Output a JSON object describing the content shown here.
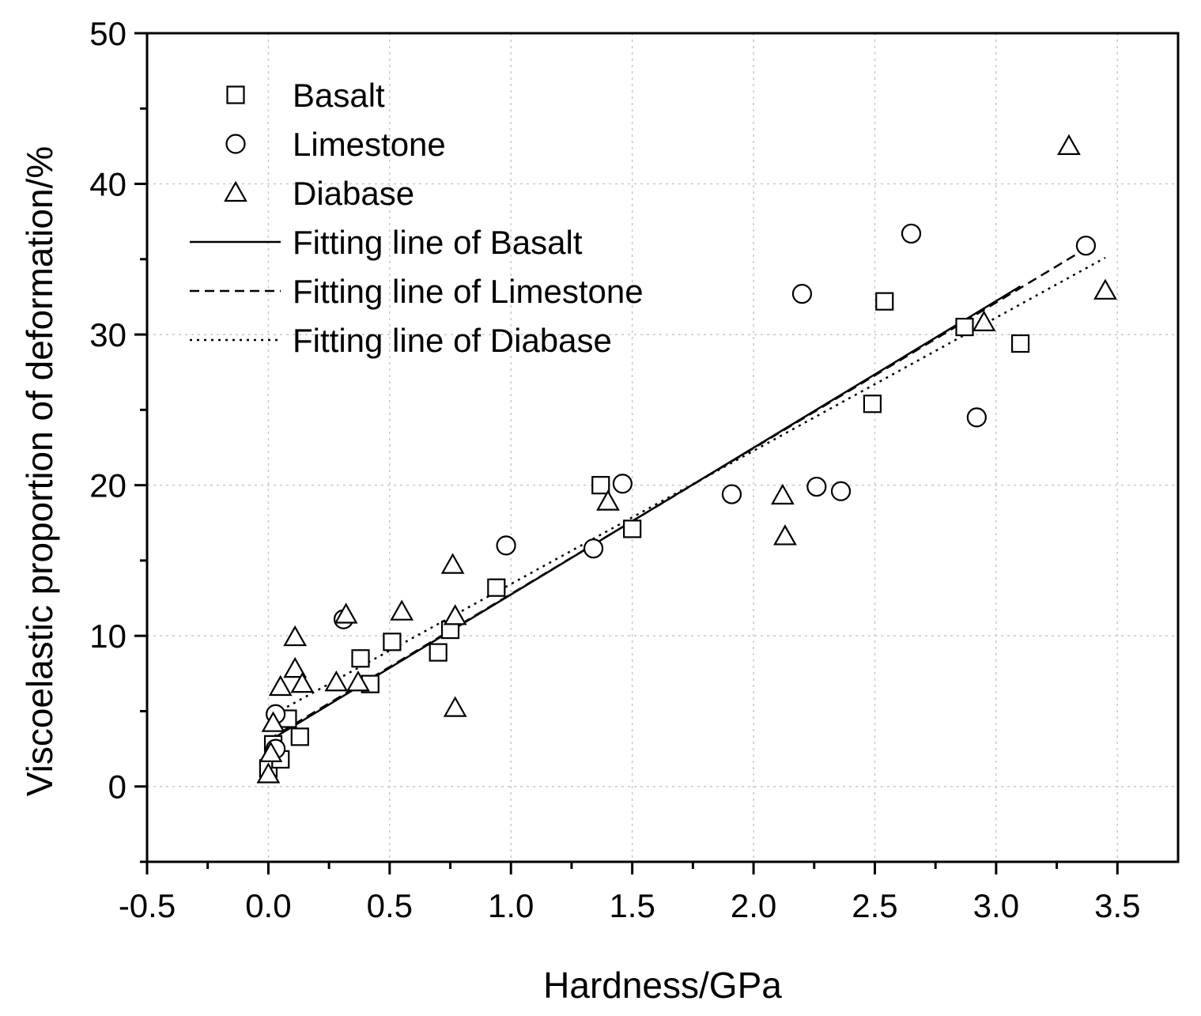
{
  "chart_data": {
    "type": "scatter",
    "xlabel": "Hardness/GPa",
    "ylabel": "Viscoelastic proportion of  deformation/%",
    "xlim": [
      -0.5,
      3.75
    ],
    "ylim": [
      -5,
      50
    ],
    "x_ticks": [
      -0.5,
      0.0,
      0.5,
      1.0,
      1.5,
      2.0,
      2.5,
      3.0,
      3.5
    ],
    "x_tick_labels": [
      "-0.5",
      "0.0",
      "0.5",
      "1.0",
      "1.5",
      "2.0",
      "2.5",
      "3.0",
      "3.5"
    ],
    "y_ticks": [
      0,
      10,
      20,
      30,
      40,
      50
    ],
    "y_tick_labels": [
      "0",
      "10",
      "20",
      "30",
      "40",
      "50"
    ],
    "grid": true,
    "legend_position": "top-left",
    "series": [
      {
        "name": "Basalt",
        "marker": "square",
        "points": [
          [
            0.0,
            1.2
          ],
          [
            0.02,
            2.8
          ],
          [
            0.05,
            1.8
          ],
          [
            0.08,
            4.5
          ],
          [
            0.13,
            3.3
          ],
          [
            0.38,
            8.5
          ],
          [
            0.42,
            6.8
          ],
          [
            0.51,
            9.6
          ],
          [
            0.7,
            8.9
          ],
          [
            0.75,
            10.4
          ],
          [
            0.94,
            13.2
          ],
          [
            1.37,
            20.0
          ],
          [
            1.5,
            17.1
          ],
          [
            2.49,
            25.4
          ],
          [
            2.54,
            32.2
          ],
          [
            2.87,
            30.5
          ],
          [
            3.1,
            29.4
          ]
        ]
      },
      {
        "name": "Limestone",
        "marker": "circle",
        "points": [
          [
            0.03,
            4.8
          ],
          [
            0.03,
            2.5
          ],
          [
            0.31,
            11.1
          ],
          [
            0.98,
            16.0
          ],
          [
            1.34,
            15.8
          ],
          [
            1.46,
            20.1
          ],
          [
            1.91,
            19.4
          ],
          [
            2.2,
            32.7
          ],
          [
            2.26,
            19.9
          ],
          [
            2.36,
            19.6
          ],
          [
            2.65,
            36.7
          ],
          [
            2.92,
            24.5
          ],
          [
            3.37,
            35.9
          ]
        ]
      },
      {
        "name": "Diabase",
        "marker": "triangle",
        "points": [
          [
            0.0,
            0.8
          ],
          [
            0.01,
            2.2
          ],
          [
            0.02,
            4.2
          ],
          [
            0.05,
            6.6
          ],
          [
            0.11,
            9.9
          ],
          [
            0.11,
            7.8
          ],
          [
            0.14,
            6.8
          ],
          [
            0.28,
            6.9
          ],
          [
            0.32,
            11.4
          ],
          [
            0.37,
            6.9
          ],
          [
            0.55,
            11.6
          ],
          [
            0.76,
            14.7
          ],
          [
            0.77,
            11.3
          ],
          [
            0.77,
            5.2
          ],
          [
            1.4,
            18.9
          ],
          [
            2.12,
            19.3
          ],
          [
            2.13,
            16.6
          ],
          [
            2.95,
            30.8
          ],
          [
            3.3,
            42.5
          ],
          [
            3.45,
            32.9
          ]
        ]
      }
    ],
    "fit_lines": [
      {
        "name": "Fitting line of Basalt",
        "style": "solid",
        "x": [
          0.0,
          3.1
        ],
        "y": [
          3.0,
          33.2
        ]
      },
      {
        "name": "Fitting line of Limestone",
        "style": "dashed",
        "x": [
          0.0,
          3.38
        ],
        "y": [
          3.1,
          35.8
        ]
      },
      {
        "name": "Fitting line of Diabase",
        "style": "dotted",
        "x": [
          0.0,
          3.45
        ],
        "y": [
          4.6,
          35.1
        ]
      }
    ],
    "legend": [
      {
        "label": "Basalt",
        "symbol": "square"
      },
      {
        "label": "Limestone",
        "symbol": "circle"
      },
      {
        "label": "Diabase",
        "symbol": "triangle"
      },
      {
        "label": "Fitting line of Basalt",
        "symbol": "solid"
      },
      {
        "label": "Fitting line of Limestone",
        "symbol": "dashed"
      },
      {
        "label": "Fitting line of Diabase",
        "symbol": "dotted"
      }
    ]
  }
}
